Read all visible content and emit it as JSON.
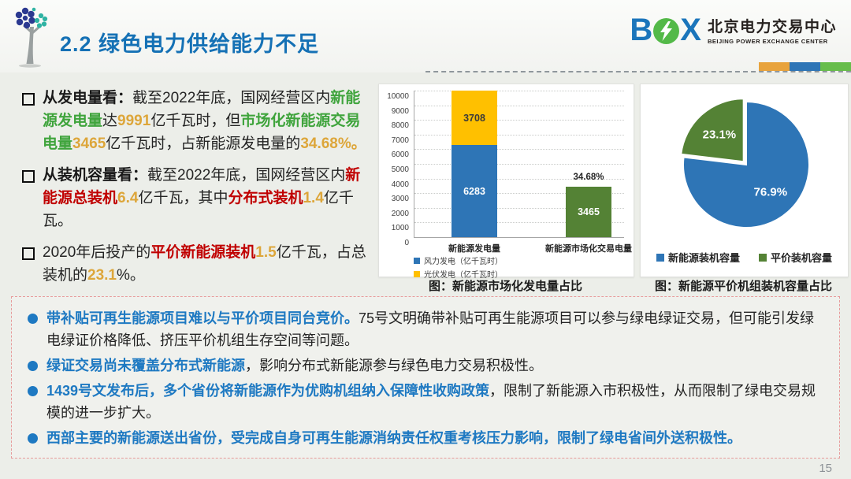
{
  "page": {
    "number": "15"
  },
  "colors": {
    "title_blue": "#1571B5",
    "accent_blue": "#1E79C2",
    "accent_green": "#3FA43C",
    "accent_orange": "#DDA63A",
    "accent_red": "#C00000",
    "bar_blue": "#2E75B6",
    "bar_yellow": "#FFC000",
    "bar_green": "#548235",
    "strip_colors": [
      "#E8A33D",
      "#2E75B6",
      "#67BD4B"
    ]
  },
  "header": {
    "title": "2.2 绿色电力供给能力不足",
    "logo": {
      "letters": "BPX",
      "letter_b": "B",
      "letter_x": "X",
      "name_cn": "北京电力交易中心",
      "name_en": "BEIJING POWER EXCHANGE CENTER"
    }
  },
  "left": {
    "bullets": [
      [
        [
          "从发电量看：",
          "bold"
        ],
        [
          "截至2022年底，国网经营区内",
          "plain"
        ],
        [
          "新能源发电量",
          "green"
        ],
        [
          "达",
          "plain"
        ],
        [
          "9991",
          "orange"
        ],
        [
          "亿千瓦时，但",
          "plain"
        ],
        [
          "市场化新能源交易电量",
          "green"
        ],
        [
          "3465",
          "orange"
        ],
        [
          "亿千瓦时，占新能源发电量的",
          "plain"
        ],
        [
          "34.68%。",
          "orange"
        ]
      ],
      [
        [
          "从装机容量看：",
          "bold"
        ],
        [
          "截至2022年底，国网经营区内",
          "plain"
        ],
        [
          "新能源总装机",
          "red"
        ],
        [
          "6.4",
          "orange"
        ],
        [
          "亿千瓦，其中",
          "plain"
        ],
        [
          "分布式装机",
          "red"
        ],
        [
          "1.4",
          "orange"
        ],
        [
          "亿千瓦。",
          "plain"
        ]
      ],
      [
        [
          "2020年后投产的",
          "plain"
        ],
        [
          "平价新能源装机",
          "red"
        ],
        [
          "1.5",
          "orange"
        ],
        [
          "亿千瓦，占总装机的",
          "plain"
        ],
        [
          "23.1",
          "orange"
        ],
        [
          "%。",
          "plain"
        ]
      ]
    ]
  },
  "bottom": {
    "bullets": [
      [
        [
          "带补贴可再生能源项目难以与平价项目同台竞价。",
          "blue"
        ],
        [
          "75号文明确带补贴可再生能源项目可以参与绿电绿证交易，但可能引发绿电绿证价格降低、挤压平价机组生存空间等问题。",
          "plain"
        ]
      ],
      [
        [
          "绿证交易尚未覆盖分布式新能源",
          "blue"
        ],
        [
          "，影响分布式新能源参与绿色电力交易积极性。",
          "plain"
        ]
      ],
      [
        [
          "1439号文发布后，多个省份将新能源作为优购机组纳入保障性收购政策",
          "blue"
        ],
        [
          "，限制了新能源入市积极性，从而限制了绿电交易规模的进一步扩大。",
          "plain"
        ]
      ],
      [
        [
          "西部主要的新能源送出省份，受完成自身可再生能源消纳责任权重考核压力影响，限制了绿电省间外送积极性。",
          "blue"
        ]
      ]
    ]
  },
  "chart_data": [
    {
      "type": "bar",
      "stacked": true,
      "caption": "图：新能源市场化发电量占比",
      "categories": [
        "新能源发电量",
        "新能源市场化交易电量"
      ],
      "series": [
        {
          "name": "风力发电（亿千瓦时）",
          "color": "#2E75B6",
          "label_color": "#ffffff",
          "values": [
            6283,
            0
          ],
          "in_legend": true
        },
        {
          "name": "光伏发电（亿千瓦时）",
          "color": "#FFC000",
          "label_color": "#3a3a3a",
          "values": [
            3708,
            0
          ],
          "in_legend": true
        },
        {
          "name": "新能源市场化交易电量",
          "color": "#548235",
          "label_color": "#ffffff",
          "values": [
            0,
            3465
          ],
          "in_legend": false
        }
      ],
      "annotation": {
        "text": "34.68%",
        "category_index": 1
      },
      "ylim": [
        0,
        10000
      ],
      "ytick_step": 1000,
      "grid": "dotted-horizontal",
      "legend_position": "bottom-left"
    },
    {
      "type": "pie",
      "caption": "图：新能源平价机组装机容量占比",
      "start_angle": "top-clockwise",
      "slices": [
        {
          "label": "新能源装机容量",
          "value": 76.9,
          "display": "76.9%",
          "color": "#2E75B6",
          "explode": 0
        },
        {
          "label": "平价装机容量",
          "value": 23.1,
          "display": "23.1%",
          "color": "#548235",
          "explode": 5
        }
      ],
      "legend_position": "bottom"
    }
  ]
}
